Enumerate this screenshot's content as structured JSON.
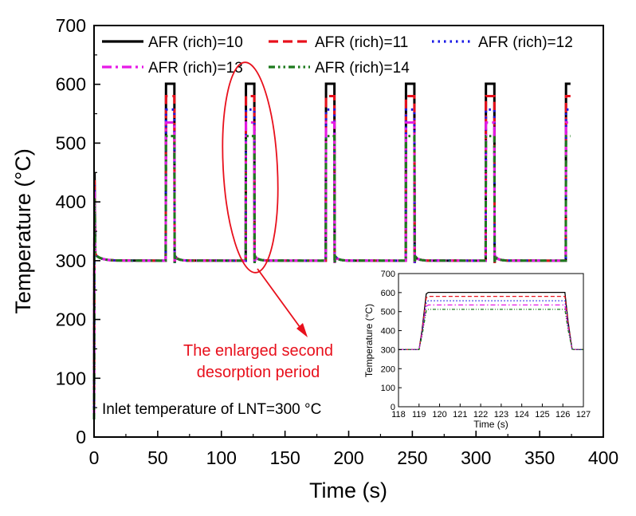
{
  "chart_data": [
    {
      "type": "line",
      "title": "",
      "xlabel": "Time (s)",
      "ylabel": "Temperature (°C)",
      "xlim": [
        0,
        400
      ],
      "ylim": [
        0,
        700
      ],
      "xticks": [
        "0",
        "50",
        "100",
        "150",
        "200",
        "250",
        "300",
        "350",
        "400"
      ],
      "yticks": [
        "0",
        "100",
        "200",
        "300",
        "400",
        "500",
        "600",
        "700"
      ],
      "cycle_starts": [
        56.5,
        119.3,
        182.2,
        245.0,
        307.8,
        370.7
      ],
      "rich_duration": 6.8,
      "baseline": 300,
      "series": [
        {
          "name": "AFR (rich)=10",
          "color": "#000000",
          "dash": "solid",
          "plateau": 601
        },
        {
          "name": "AFR (rich)=11",
          "color": "#e8101c",
          "dash": "dash",
          "plateau": 580
        },
        {
          "name": "AFR (rich)=12",
          "color": "#1a1ae6",
          "dash": "dot",
          "plateau": 557
        },
        {
          "name": "AFR (rich)=13",
          "color": "#e619e6",
          "dash": "dashdot",
          "plateau": 535
        },
        {
          "name": "AFR (rich)=14",
          "color": "#1d7a1d",
          "dash": "dashdotdot",
          "plateau": 512
        }
      ],
      "annotations": {
        "enlarged_line1": "The enlarged second",
        "enlarged_line2": "desorption period",
        "inlet": "Inlet temperature of LNT=300 °C"
      },
      "legend_position": "top"
    },
    {
      "type": "line",
      "title": "",
      "xlabel": "Time (s)",
      "ylabel": "Temperature (°C)",
      "xlim": [
        118,
        127
      ],
      "ylim": [
        0,
        700
      ],
      "xticks": [
        "118",
        "119",
        "120",
        "121",
        "122",
        "123",
        "124",
        "125",
        "126",
        "127"
      ],
      "yticks": [
        "0",
        "100",
        "200",
        "300",
        "400",
        "500",
        "600",
        "700"
      ],
      "rise_start": 119.0,
      "rise_end": 119.45,
      "fall_start": 126.1,
      "fall_end": 126.55,
      "baseline": 300,
      "legend_position": "none"
    }
  ]
}
